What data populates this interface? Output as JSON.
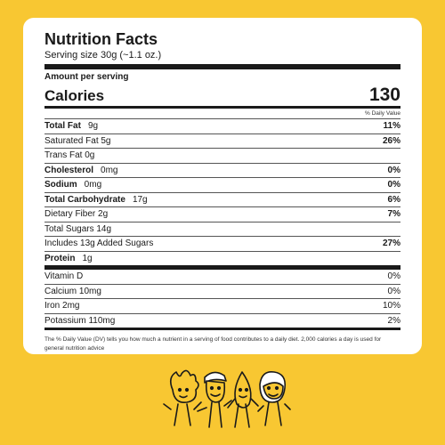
{
  "label": {
    "title": "Nutrition Facts",
    "serving_size": "Serving size 30g (~1.1 oz.)",
    "amount_per_serving": "Amount per serving",
    "calories_label": "Calories",
    "calories_value": "130",
    "dv_header": "% Daily Value",
    "rows": [
      {
        "name": "Total Fat",
        "amount": "9g",
        "dv": "11%",
        "bold": true
      },
      {
        "name": "Saturated Fat 5g",
        "amount": "",
        "dv": "26%",
        "bold": false
      },
      {
        "name": "Trans Fat 0g",
        "amount": "",
        "dv": "",
        "bold": false
      },
      {
        "name": "Cholesterol",
        "amount": "0mg",
        "dv": "0%",
        "bold": true
      },
      {
        "name": "Sodium",
        "amount": "0mg",
        "dv": "0%",
        "bold": true
      },
      {
        "name": "Total Carbohydrate",
        "amount": "17g",
        "dv": "6%",
        "bold": true
      },
      {
        "name": "Dietary Fiber 2g",
        "amount": "",
        "dv": "7%",
        "bold": false
      },
      {
        "name": "Total Sugars 14g",
        "amount": "",
        "dv": "",
        "bold": false
      },
      {
        "name": "Includes 13g Added Sugars",
        "amount": "",
        "dv": "27%",
        "bold": false
      },
      {
        "name": "Protein",
        "amount": "1g",
        "dv": "",
        "bold": true
      }
    ],
    "vitamins": [
      {
        "name": "Vitamin D",
        "dv": "0%"
      },
      {
        "name": "Calcium 10mg",
        "dv": "0%"
      },
      {
        "name": "Iron 2mg",
        "dv": "10%"
      },
      {
        "name": "Potassium 110mg",
        "dv": "2%"
      }
    ],
    "footnote": "The % Daily Value (DV) tells you how much a nutrient in a serving of food contributes to a daily diet. 2,000 calories a day is used for general nutrition advice"
  },
  "colors": {
    "background": "#f8c732",
    "card": "#ffffff",
    "ink": "#1a1a1a"
  },
  "mascot_icon": "cartoon-nut-characters-icon"
}
